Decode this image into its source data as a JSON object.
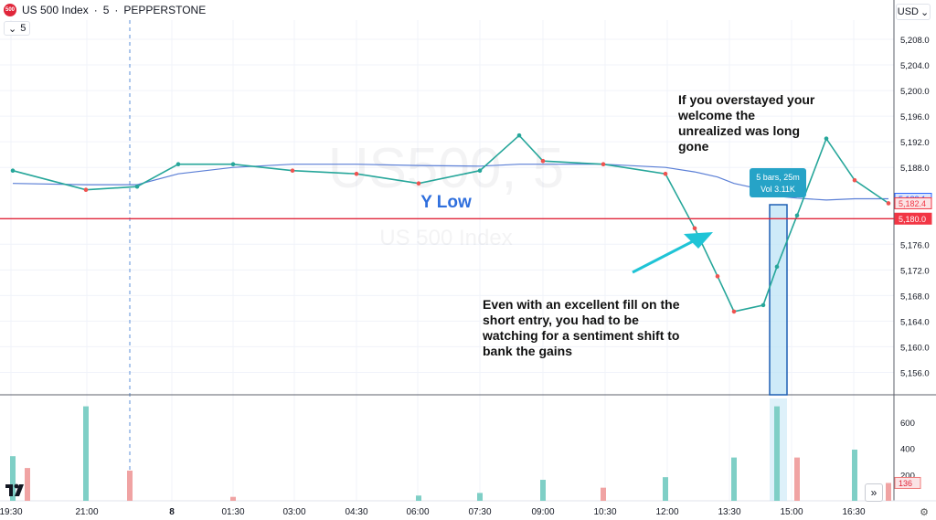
{
  "header": {
    "logo_text": "500",
    "symbol": "US 500 Index",
    "interval": "5",
    "broker": "PEPPERSTONE",
    "separator": "·"
  },
  "interval_chip": {
    "caret": "⌄",
    "value": "5"
  },
  "currency": {
    "label": "USD",
    "caret": "⌄"
  },
  "watermark": {
    "big": "US500, 5",
    "small": "US 500 Index"
  },
  "annotations": {
    "y_low": "Y Low",
    "top_note": [
      "If you overstayed your",
      "welcome the",
      "unrealized was long",
      "gone"
    ],
    "bottom_note": [
      "Even with an excellent fill on the",
      "short entry, you had to be",
      "watching for a sentiment shift to",
      "bank the gains"
    ]
  },
  "tooltip": {
    "line1": "5 bars, 25m",
    "line2": "Vol 3.11K"
  },
  "price_badges": [
    {
      "label": "5,183.1",
      "value": 5183.1,
      "color": "#2962ff"
    },
    {
      "label": "5,182.4",
      "value": 5182.4,
      "color": "#f23645"
    },
    {
      "label": "5,180.0",
      "value": 5180.0,
      "color": "#f23645"
    }
  ],
  "volume_badge": {
    "label": "136"
  },
  "x_axis": {
    "labels": [
      "19:30",
      "21:00",
      "8",
      "01:30",
      "03:00",
      "04:30",
      "06:00",
      "07:30",
      "09:00",
      "10:30",
      "12:00",
      "13:30",
      "15:00",
      "16:30"
    ]
  },
  "y_axis": {
    "labels": [
      "5,208.0",
      "5,204.0",
      "5,200.0",
      "5,196.0",
      "5,192.0",
      "5,188.0",
      "5,176.0",
      "5,172.0",
      "5,168.0",
      "5,164.0",
      "5,160.0",
      "5,156.0"
    ],
    "values": [
      5208,
      5204,
      5200,
      5196,
      5192,
      5188,
      5176,
      5172,
      5168,
      5164,
      5160,
      5156
    ],
    "range": [
      5152.5,
      5211
    ]
  },
  "volume_axis": {
    "labels": [
      "600",
      "400",
      "200"
    ],
    "values": [
      600,
      400,
      200
    ],
    "range": [
      0,
      780
    ]
  },
  "chart_data": {
    "type": "line",
    "title": "US 500 Index · 5 · PEPPERSTONE",
    "x": [
      "19:30",
      "21:00",
      "22:30",
      "00:00",
      "01:30",
      "03:00",
      "04:30",
      "06:00",
      "07:30",
      "08:30",
      "09:00",
      "10:30",
      "12:00",
      "12:30",
      "13:00",
      "13:30",
      "14:00",
      "14:30",
      "15:00",
      "15:30",
      "16:30",
      "17:00"
    ],
    "series": [
      {
        "name": "Price",
        "values": [
          5187.5,
          5184.5,
          5185,
          5188.5,
          5188.5,
          5187.5,
          5187,
          5185.5,
          5187.5,
          5193,
          5189,
          5188.5,
          5187,
          5178.5,
          5171,
          5165.5,
          5166.5,
          5172.5,
          5180.5,
          5192.5,
          5186,
          5182.4
        ]
      },
      {
        "name": "Moving average",
        "values": [
          5185.5,
          5185.3,
          5185.3,
          5187,
          5188,
          5188.5,
          5188.5,
          5188.3,
          5188.2,
          5188.5,
          5188.5,
          5188.5,
          5188,
          5187.3,
          5186.5,
          5185.5,
          5184.5,
          5183.5,
          5183.2,
          5182.9,
          5183.1,
          5183.1
        ]
      }
    ],
    "hline": {
      "value": 5180.0,
      "label": "Y Low"
    },
    "volume": {
      "x": [
        "19:30",
        "20:00",
        "21:00",
        "22:00",
        "01:30",
        "06:00",
        "07:30",
        "09:00",
        "10:30",
        "12:00",
        "13:30",
        "14:30",
        "15:00",
        "16:30",
        "17:00"
      ],
      "values": [
        340,
        250,
        720,
        230,
        30,
        40,
        60,
        160,
        100,
        180,
        330,
        720,
        330,
        390,
        136
      ]
    },
    "ylim": [
      5152.5,
      5211
    ],
    "volume_ylim": [
      0,
      780
    ],
    "grid": true,
    "legend": "none",
    "ylabel": "USD",
    "xlabel": ""
  }
}
